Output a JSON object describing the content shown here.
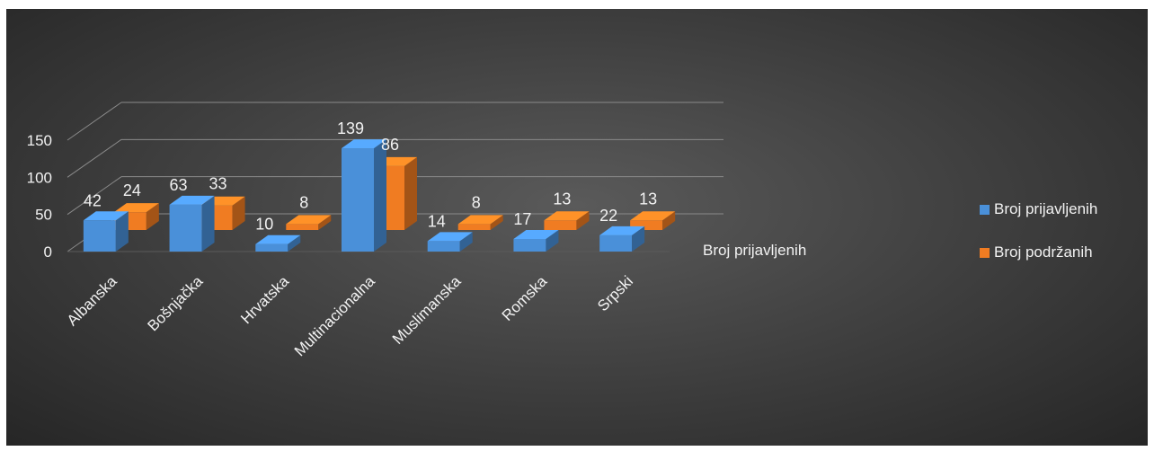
{
  "chart_data": {
    "type": "bar",
    "categories": [
      "Albanska",
      "Bošnjačka",
      "Hrvatska",
      "Multinacionalna",
      "Muslimanska",
      "Romska",
      "Srpski"
    ],
    "series": [
      {
        "name": "Broj prijavljenih",
        "values": [
          42,
          63,
          10,
          139,
          14,
          17,
          22
        ],
        "color": "#4a90d9"
      },
      {
        "name": "Broj podržanih",
        "values": [
          24,
          33,
          8,
          86,
          8,
          13,
          13
        ],
        "color": "#f07c22"
      }
    ],
    "yticks": [
      "0",
      "50",
      "100",
      "150"
    ],
    "ylim": [
      0,
      150
    ],
    "depth_axis_label": "Broj prijavljenih",
    "grid": true,
    "legend": "right"
  }
}
